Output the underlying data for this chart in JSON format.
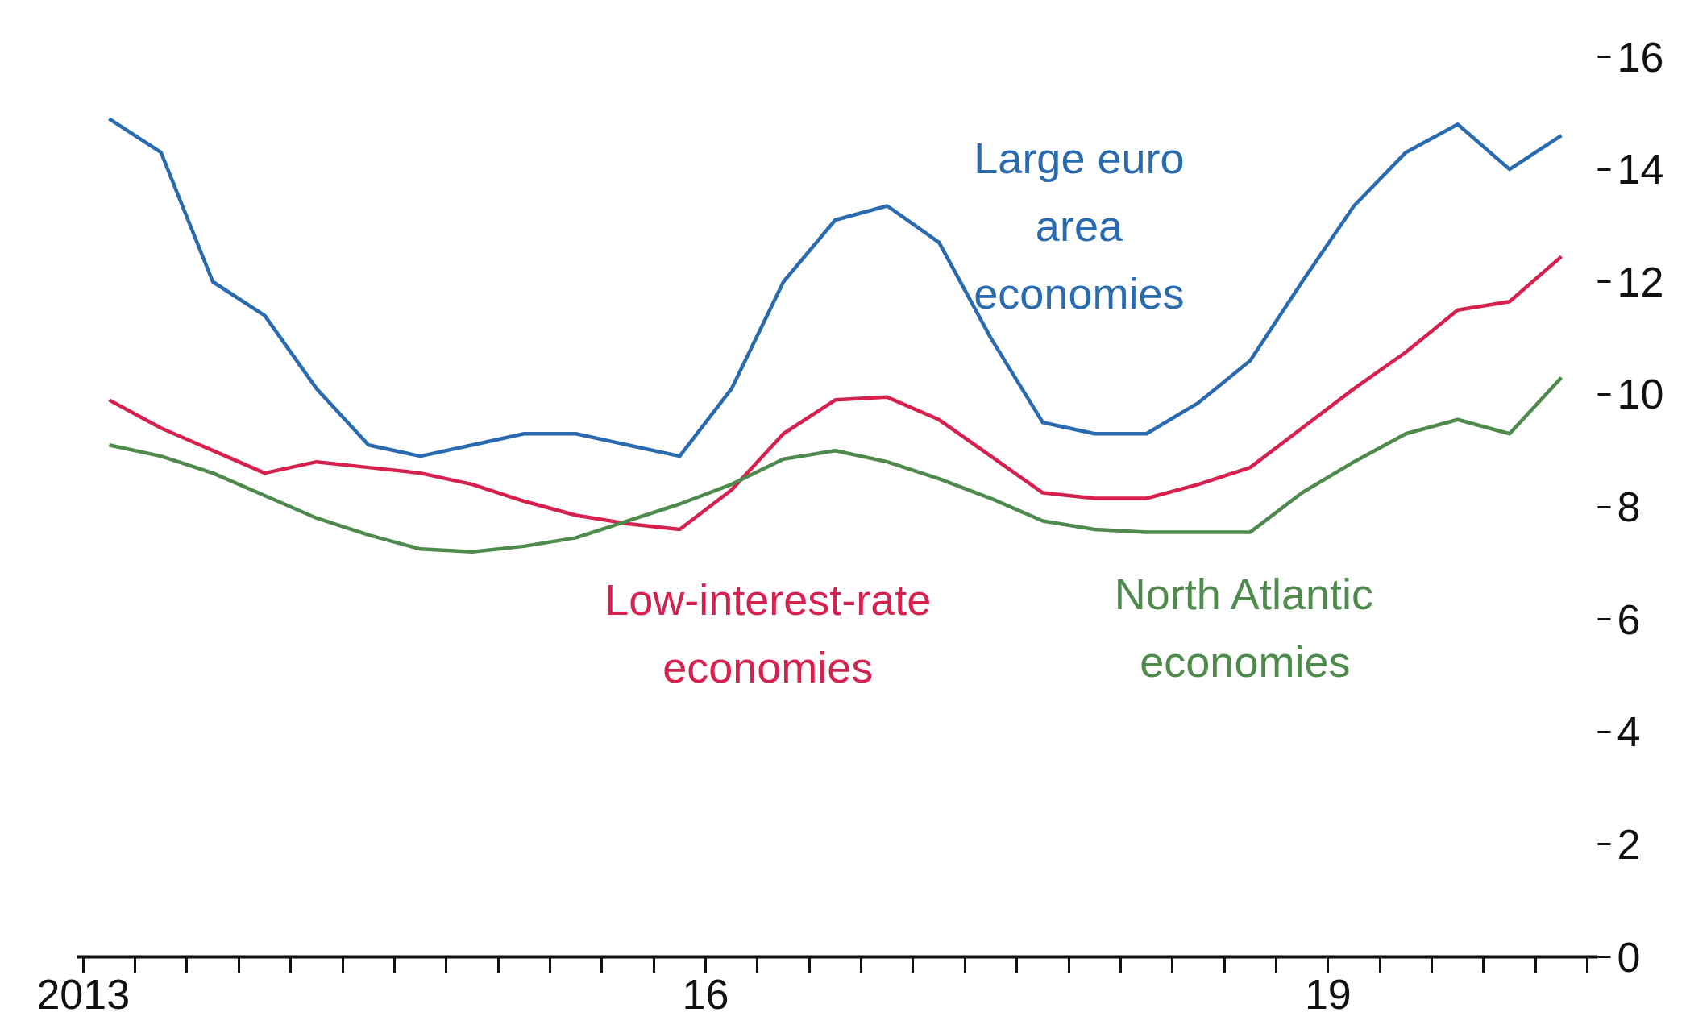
{
  "chart_data": {
    "type": "line",
    "x": [
      2013.125,
      2013.375,
      2013.625,
      2013.875,
      2014.125,
      2014.375,
      2014.625,
      2014.875,
      2015.125,
      2015.375,
      2015.625,
      2015.875,
      2016.125,
      2016.375,
      2016.625,
      2016.875,
      2017.125,
      2017.375,
      2017.625,
      2017.875,
      2018.125,
      2018.375,
      2018.625,
      2018.875,
      2019.125,
      2019.375,
      2019.625,
      2019.875,
      2020.125
    ],
    "series": [
      {
        "name": "Large euro area economies",
        "color": "#2a6bb0",
        "values": [
          14.9,
          14.3,
          12.0,
          11.4,
          10.1,
          9.1,
          8.9,
          9.1,
          9.3,
          9.3,
          9.1,
          8.9,
          10.1,
          12.0,
          13.1,
          13.35,
          12.7,
          11.0,
          9.5,
          9.3,
          9.3,
          9.85,
          10.6,
          12.0,
          13.35,
          14.3,
          14.8,
          14.0,
          14.6
        ]
      },
      {
        "name": "Low-interest-rate economies",
        "color": "#d6214f",
        "values": [
          9.9,
          9.4,
          9.0,
          8.6,
          8.8,
          8.7,
          8.6,
          8.4,
          8.1,
          7.85,
          7.7,
          7.6,
          8.3,
          9.3,
          9.9,
          9.95,
          9.55,
          8.9,
          8.25,
          8.15,
          8.15,
          8.4,
          8.7,
          9.4,
          10.1,
          10.75,
          11.5,
          11.65,
          12.45
        ]
      },
      {
        "name": "North Atlantic economies",
        "color": "#4e8a4c",
        "values": [
          9.1,
          8.9,
          8.6,
          8.2,
          7.8,
          7.5,
          7.25,
          7.2,
          7.3,
          7.45,
          7.75,
          8.05,
          8.4,
          8.85,
          9.0,
          8.8,
          8.5,
          8.15,
          7.75,
          7.6,
          7.55,
          7.55,
          7.55,
          8.25,
          8.8,
          9.3,
          9.55,
          9.3,
          10.3
        ]
      }
    ],
    "xlim": [
      2012.97,
      2020.3
    ],
    "xticks": [
      {
        "value": 2013,
        "label": "2013"
      },
      {
        "value": 2016,
        "label": "16"
      },
      {
        "value": 2019,
        "label": "19"
      }
    ],
    "ylim": [
      0,
      16
    ],
    "yticks": [
      0,
      2,
      4,
      6,
      8,
      10,
      12,
      14,
      16
    ],
    "grid": false,
    "line_style": "solid",
    "marker": "none"
  }
}
